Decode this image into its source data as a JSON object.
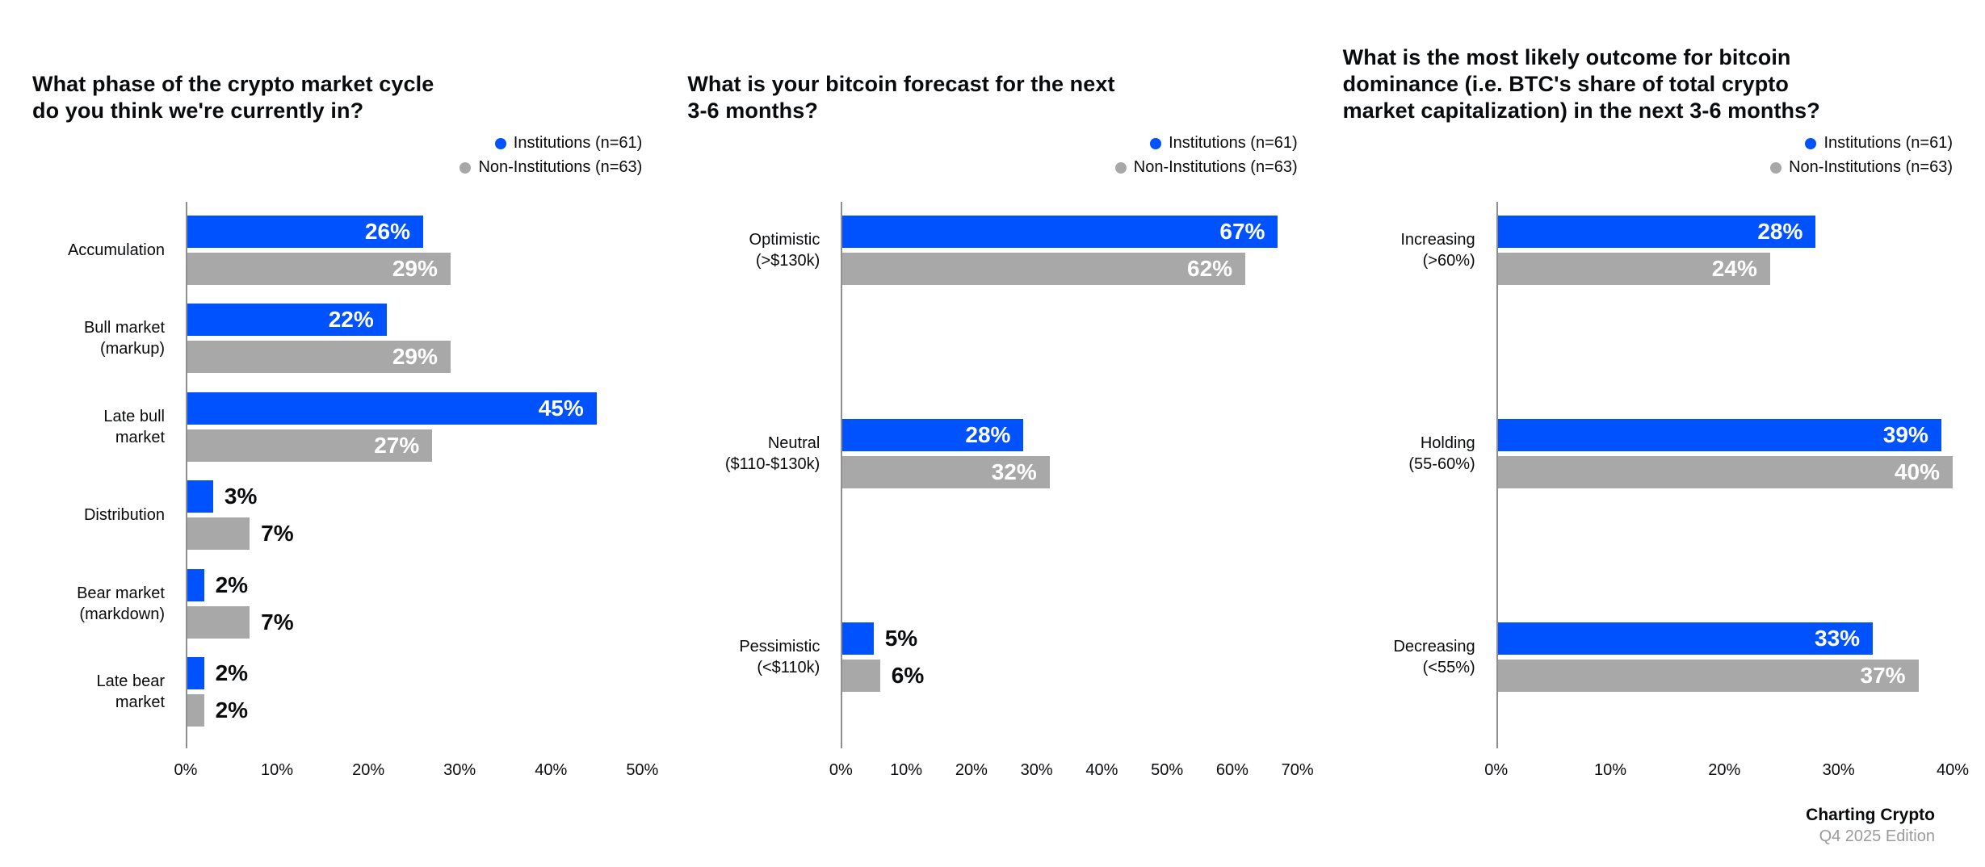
{
  "colors": {
    "institutions": "#0052ff",
    "non_institutions": "#a8a8a8"
  },
  "footer": {
    "title": "Charting Crypto",
    "subtitle": "Q4 2025 Edition"
  },
  "chart_data": [
    {
      "type": "bar",
      "orientation": "horizontal",
      "title": "What phase of the crypto market cycle\ndo you think we're currently in?",
      "categories": [
        "Accumulation",
        "Bull market\n(markup)",
        "Late bull\nmarket",
        "Distribution",
        "Bear market\n(markdown)",
        "Late bear\nmarket"
      ],
      "series": [
        {
          "name": "Institutions (n=61)",
          "values": [
            26,
            22,
            45,
            3,
            2,
            2
          ]
        },
        {
          "name": "Non-Institutions (n=63)",
          "values": [
            29,
            29,
            27,
            7,
            7,
            2
          ]
        }
      ],
      "xlim": [
        0,
        50
      ],
      "xticks": [
        "0%",
        "10%",
        "20%",
        "30%",
        "40%",
        "50%"
      ],
      "value_suffix": "%",
      "grid": false,
      "legend_position": "top-right"
    },
    {
      "type": "bar",
      "orientation": "horizontal",
      "title": "What is your bitcoin forecast for the next\n3-6 months?",
      "categories": [
        "Optimistic\n(>$130k)",
        "Neutral\n($110-$130k)",
        "Pessimistic\n(<$110k)"
      ],
      "series": [
        {
          "name": "Institutions (n=61)",
          "values": [
            67,
            28,
            5
          ]
        },
        {
          "name": "Non-Institutions (n=63)",
          "values": [
            62,
            32,
            6
          ]
        }
      ],
      "xlim": [
        0,
        70
      ],
      "xticks": [
        "0%",
        "10%",
        "20%",
        "30%",
        "40%",
        "50%",
        "60%",
        "70%"
      ],
      "value_suffix": "%",
      "grid": false,
      "legend_position": "top-right"
    },
    {
      "type": "bar",
      "orientation": "horizontal",
      "title": "What is the most likely outcome for bitcoin\ndominance (i.e. BTC's share of total crypto\nmarket capitalization) in the next 3-6 months?",
      "categories": [
        "Increasing\n(>60%)",
        "Holding\n(55-60%)",
        "Decreasing\n(<55%)"
      ],
      "series": [
        {
          "name": "Institutions (n=61)",
          "values": [
            28,
            39,
            33
          ]
        },
        {
          "name": "Non-Institutions (n=63)",
          "values": [
            24,
            40,
            37
          ]
        }
      ],
      "xlim": [
        0,
        40
      ],
      "xticks": [
        "0%",
        "10%",
        "20%",
        "30%",
        "40%"
      ],
      "value_suffix": "%",
      "grid": false,
      "legend_position": "top-right"
    }
  ]
}
